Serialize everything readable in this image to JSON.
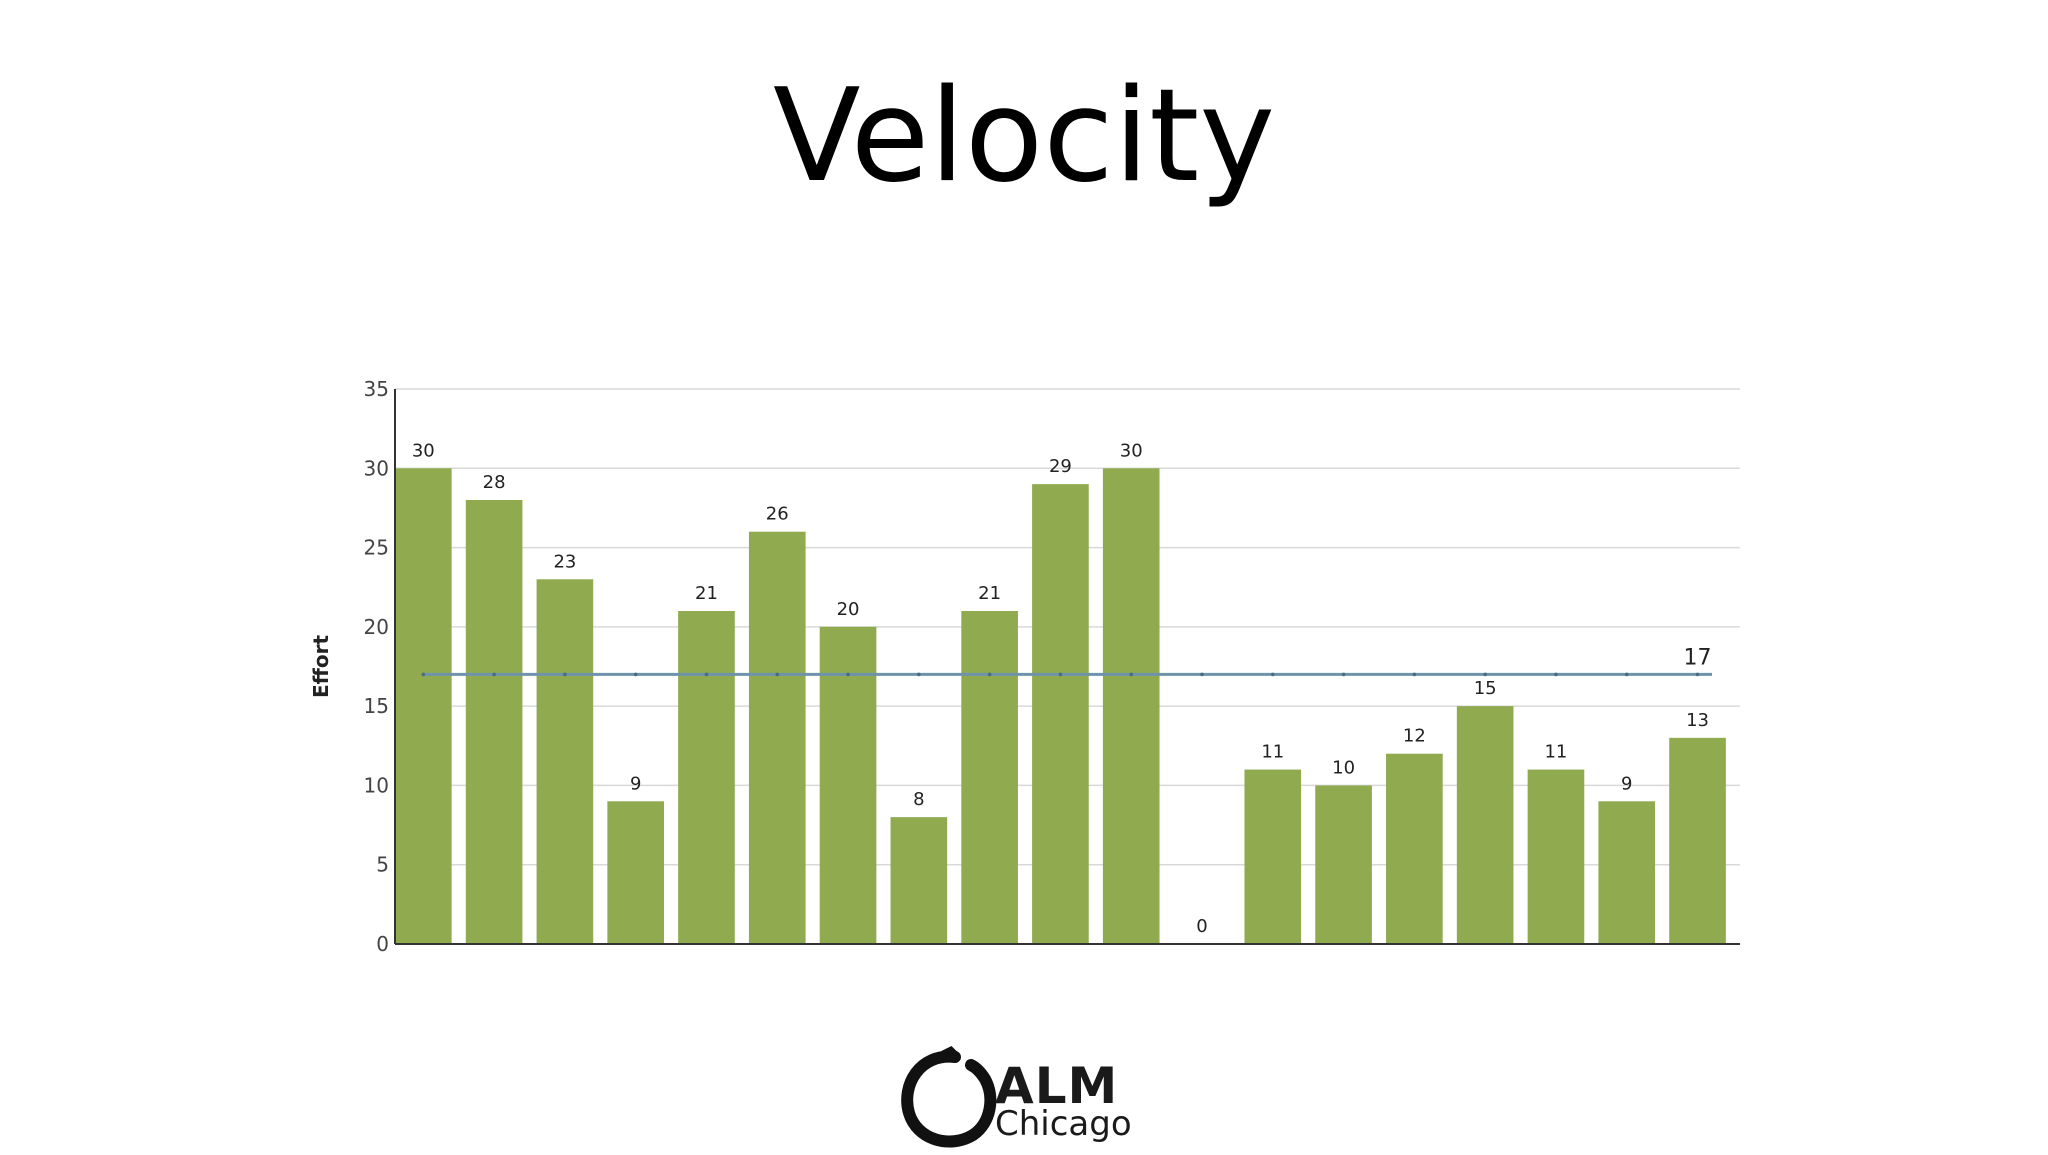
{
  "slide": {
    "title": "Velocity"
  },
  "logo": {
    "line1": "ALM",
    "line2": "Chicago"
  },
  "chart_data": {
    "type": "bar",
    "title": "",
    "ylabel": "Effort",
    "xlabel": "",
    "ylim": [
      0,
      35
    ],
    "yticks": [
      0,
      5,
      10,
      15,
      20,
      25,
      30,
      35
    ],
    "grid": true,
    "values": [
      30,
      28,
      23,
      9,
      21,
      26,
      20,
      8,
      21,
      29,
      30,
      0,
      11,
      10,
      12,
      15,
      11,
      9,
      13
    ],
    "average": 17,
    "bar_color": "#8faa4f",
    "average_line_color": "#6f93aa"
  }
}
